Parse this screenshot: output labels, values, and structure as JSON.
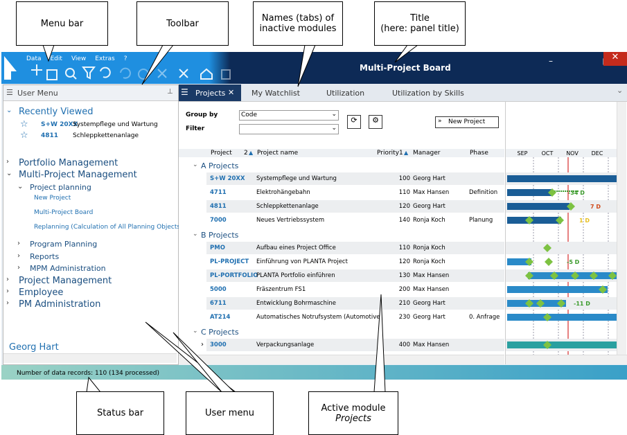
{
  "callouts": {
    "menu_bar": "Menu bar",
    "toolbar": "Toolbar",
    "tabs": "Names (tabs) of inactive modules",
    "title_line1": "Title",
    "title_line2": "(here: panel title)",
    "status_bar": "Status bar",
    "user_menu": "User menu",
    "active_module": "Active module",
    "active_module_name": "Projects"
  },
  "menu": [
    "Data",
    "Edit",
    "View",
    "Extras",
    "?"
  ],
  "title": "Multi-Project Board",
  "user_menu": {
    "header": "User Menu",
    "recent_title": "Recently Viewed",
    "recent": [
      {
        "code": "S+W 20XX",
        "name": "Systempflege und Wartung"
      },
      {
        "code": "4811",
        "name": "Schleppkettenanlage"
      }
    ],
    "tree": [
      {
        "label": "Portfolio Management",
        "level": 0
      },
      {
        "label": "Multi-Project Management",
        "level": 0
      },
      {
        "label": "Project planning",
        "level": 1
      },
      {
        "label": "New Project",
        "level": 2
      },
      {
        "label": "Multi-Project Board",
        "level": 2
      },
      {
        "label": "Replanning (Calculation of All Planning Objects)",
        "level": 2
      },
      {
        "label": "Program Planning",
        "level": 1
      },
      {
        "label": "Reports",
        "level": 1
      },
      {
        "label": "MPM Administration",
        "level": 1
      },
      {
        "label": "Project Management",
        "level": 0
      },
      {
        "label": "Employee",
        "level": 0
      },
      {
        "label": "PM Administration",
        "level": 0
      }
    ],
    "user": "Georg Hart"
  },
  "tabs": [
    "Projects",
    "My Watchlist",
    "Utilization",
    "Utilization by Skills"
  ],
  "controls": {
    "group_by_label": "Group by",
    "group_by_value": "Code",
    "filter_label": "Filter",
    "new_project": "New Project"
  },
  "table": {
    "columns": {
      "project": "Project",
      "project_sort": "2",
      "name": "Project name",
      "priority": "Priority",
      "priority_sort": "1",
      "manager": "Manager",
      "phase": "Phase"
    },
    "months": [
      "SEP",
      "OCT",
      "NOV",
      "DEC"
    ],
    "groups": [
      {
        "name": "A Projects",
        "rows": [
          {
            "code": "S+W 20XX",
            "name": "Systempflege und Wartung",
            "priority": 100,
            "manager": "Georg Hart"
          },
          {
            "code": "4711",
            "name": "Elektrohängebahn",
            "priority": 110,
            "manager": "Max Hansen",
            "phase": "Definition",
            "deviation": "-34 D"
          },
          {
            "code": "4811",
            "name": "Schleppkettenanlage",
            "priority": 120,
            "manager": "Georg Hart",
            "deviation": "7 D"
          },
          {
            "code": "7000",
            "name": "Neues Vertriebssystem",
            "priority": 140,
            "manager": "Ronja Koch",
            "phase": "Planung",
            "deviation": "1 D"
          }
        ]
      },
      {
        "name": "B Projects",
        "rows": [
          {
            "code": "PMO",
            "name": "Aufbau eines Project Office",
            "priority": 110,
            "manager": "Ronja Koch"
          },
          {
            "code": "PL-PROJECT",
            "name": "Einführung von PLANTA Project",
            "priority": 120,
            "manager": "Ronja Koch",
            "deviation": "-5 D"
          },
          {
            "code": "PL-PORTFOLIO",
            "name": "PLANTA Portfolio einführen",
            "priority": 130,
            "manager": "Max Hansen"
          },
          {
            "code": "5000",
            "name": "Fräszentrum FS1",
            "priority": 200,
            "manager": "Max Hansen"
          },
          {
            "code": "6711",
            "name": "Entwicklung Bohrmaschine",
            "priority": 210,
            "manager": "Georg Hart",
            "deviation": "-11 D"
          },
          {
            "code": "AT214",
            "name": "Automatisches Notrufsystem (Automotive)",
            "priority": 230,
            "manager": "Georg Hart",
            "phase": "0. Anfrage"
          }
        ]
      },
      {
        "name": "C Projects",
        "rows": [
          {
            "code": "3000",
            "name": "Verpackungsanlage",
            "priority": 400,
            "manager": "Max Hansen"
          }
        ]
      }
    ]
  },
  "status": "Number of data records: 110 (134 processed)"
}
